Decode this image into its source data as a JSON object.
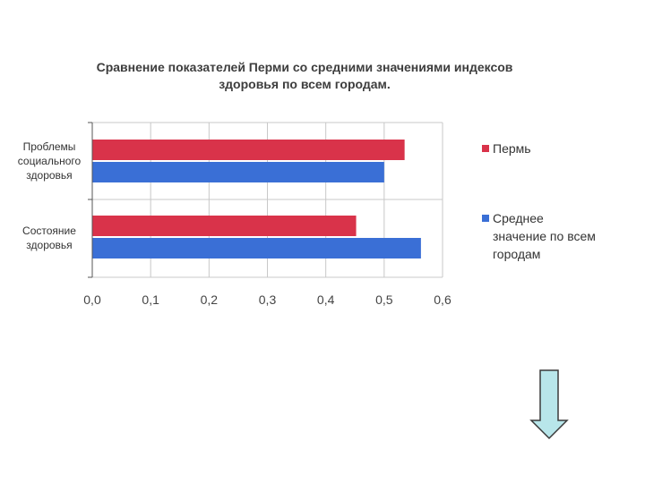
{
  "chart_data": {
    "type": "bar",
    "orientation": "horizontal",
    "title": [
      "Сравнение показателей Перми со средними значениями индексов",
      "здоровья по всем городам."
    ],
    "categories": [
      [
        "Проблемы",
        "социального",
        "здоровья"
      ],
      [
        "Состояние",
        "здоровья"
      ]
    ],
    "series": [
      {
        "name": "Пермь",
        "color": "#d9334a",
        "values": [
          0.535,
          0.452
        ]
      },
      {
        "name": [
          "Среднее",
          "значение по всем",
          "городам"
        ],
        "color": "#3a6fd6",
        "values": [
          0.5,
          0.563
        ]
      }
    ],
    "xlim": [
      0,
      0.6
    ],
    "x_ticks": [
      "0,0",
      "0,1",
      "0,2",
      "0,3",
      "0,4",
      "0,5",
      "0,6"
    ],
    "grid": "vertical",
    "legend": "right"
  },
  "colors": {
    "arrow_fill": "#b8e6ea",
    "arrow_stroke": "#3a3a3a",
    "grid": "#c8c8c8"
  },
  "icons": {
    "arrow": "down-arrow-icon"
  }
}
